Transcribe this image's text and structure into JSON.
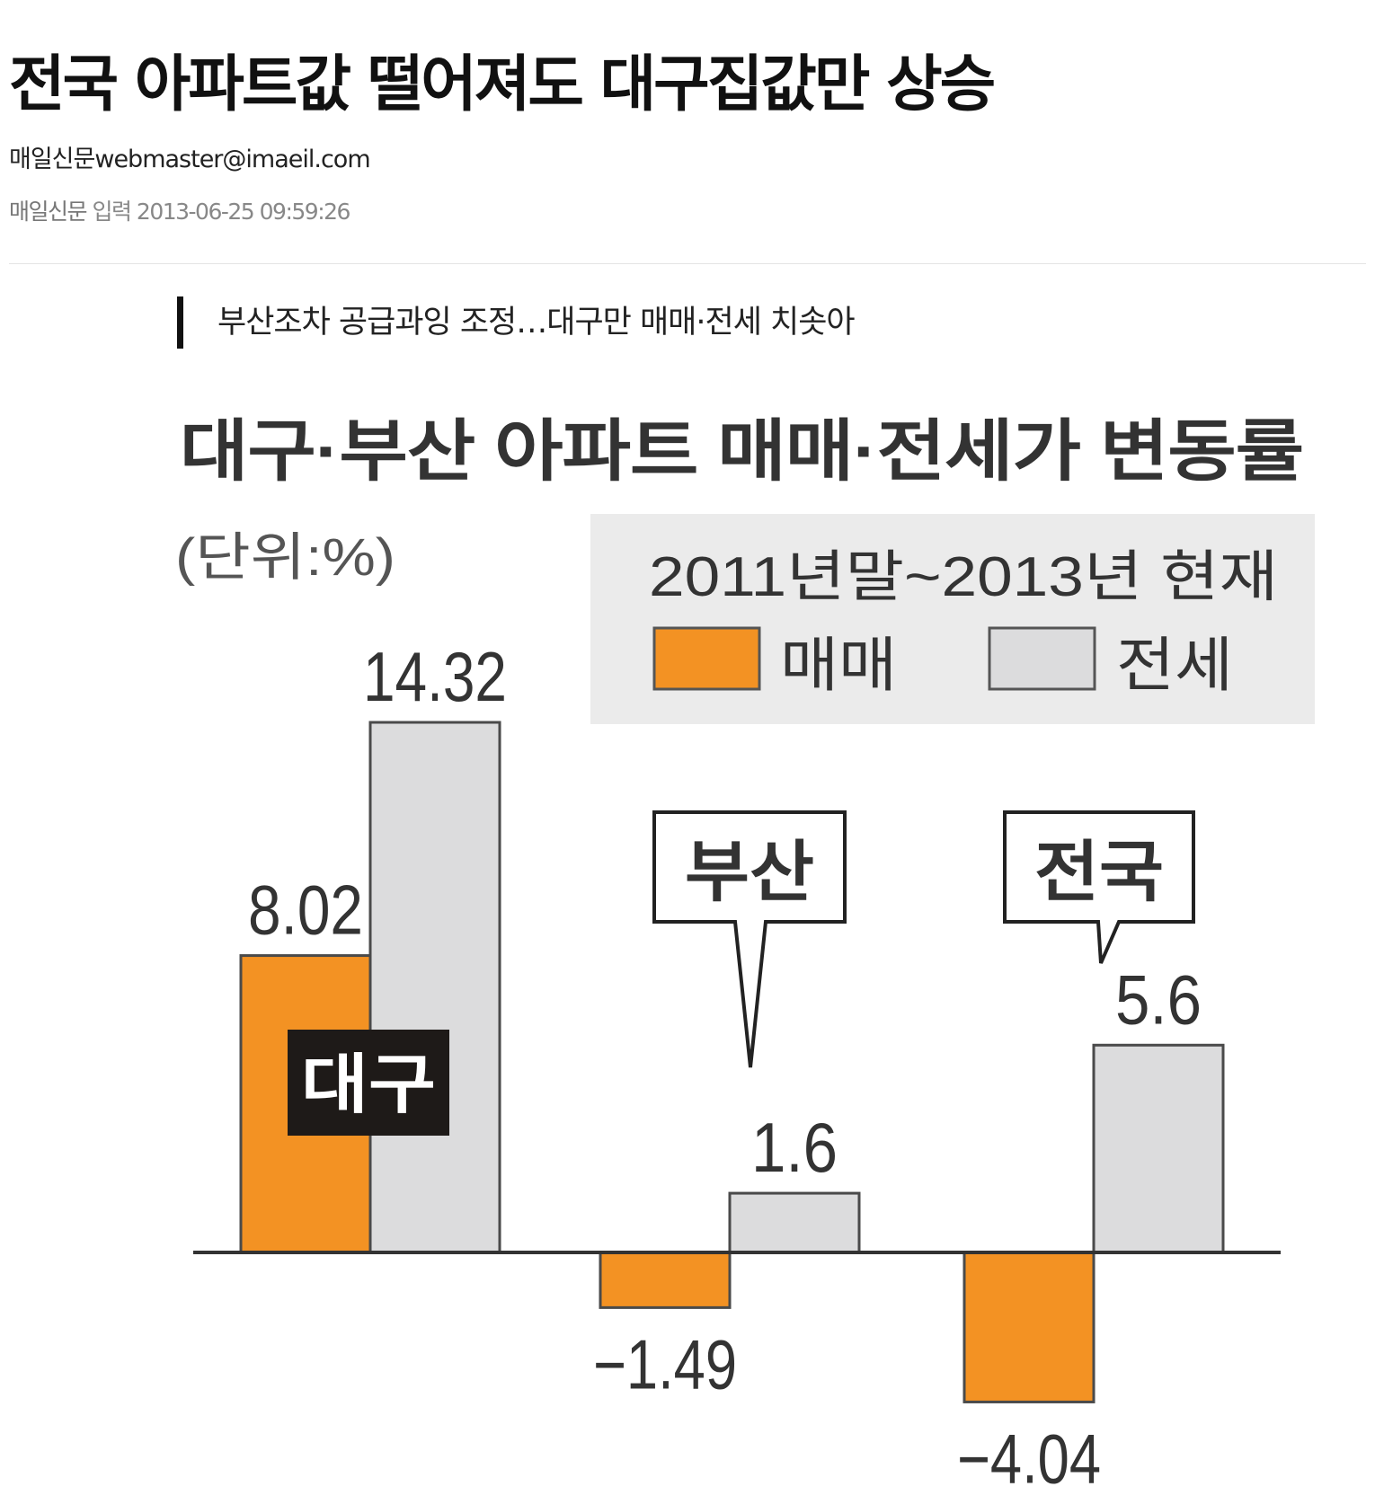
{
  "article": {
    "headline": "전국 아파트값 떨어져도 대구집값만 상승",
    "byline": "매일신문webmaster@imaeil.com",
    "source": "매일신문",
    "published": "입력 2013-06-25 09:59:26",
    "subheadline": "부산조차 공급과잉 조정…대구만 매매·전세 치솟아"
  },
  "colors": {
    "sale": "#f39223",
    "jeonse": "#dcdcdd",
    "legend_bg": "#ebebeb",
    "callout_dark": "#1e1a18"
  },
  "chart_data": {
    "type": "bar",
    "title": "대구·부산 아파트 매매·전세가 변동률",
    "unit_label": "(단위:%)",
    "legend_title": "2011년말~2013년 현재",
    "legend_placement": "top-right",
    "categories": [
      "대구",
      "부산",
      "전국"
    ],
    "series": [
      {
        "name": "매매",
        "values": [
          8.02,
          -1.49,
          -4.04
        ],
        "labels": [
          "8.02",
          "−1.49",
          "−4.04"
        ]
      },
      {
        "name": "전세",
        "values": [
          14.32,
          1.6,
          5.6
        ],
        "labels": [
          "14.32",
          "1.6",
          "5.6"
        ]
      }
    ],
    "ylim": [
      -4.04,
      14.32
    ],
    "grid": false
  }
}
